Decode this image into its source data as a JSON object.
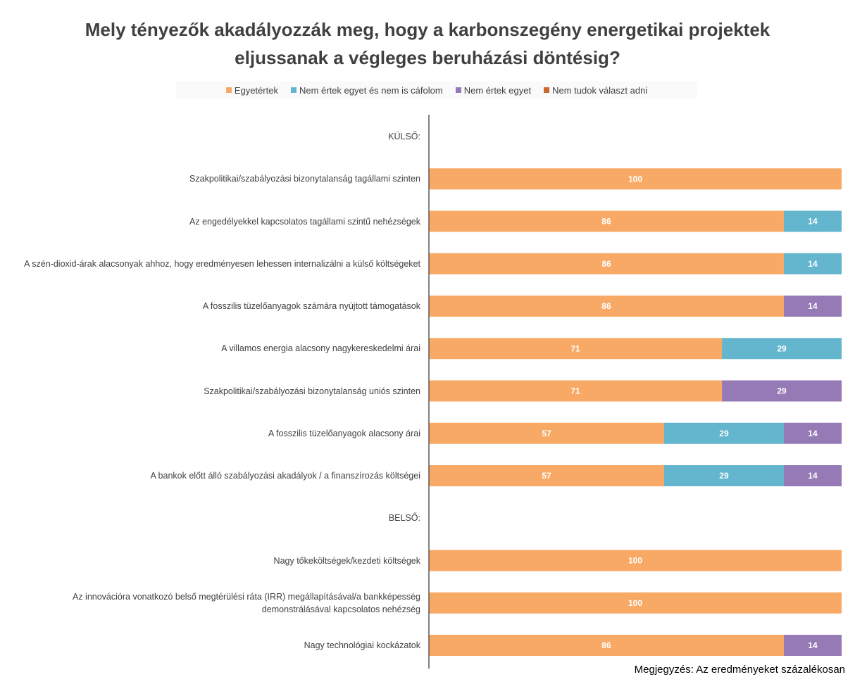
{
  "chart_data": {
    "type": "stacked-bar-horizontal",
    "title": "Mely tényezők akadályozzák meg, hogy a karbonszegény energetikai projektek eljussanak a végleges beruházási döntésig?",
    "categories": [
      "KÜLSŐ:",
      "Szakpolitikai/szabályozási bizonytalanság tagállami szinten",
      "Az engedélyekkel kapcsolatos tagállami szintű nehézségek",
      "A szén-dioxid-árak alacsonyak ahhoz, hogy eredményesen lehessen internalizálni a külső költségeket",
      "A fosszilis tüzelőanyagok számára nyújtott támogatások",
      "A villamos energia alacsony nagykereskedelmi árai",
      "Szakpolitikai/szabályozási bizonytalanság uniós szinten",
      "A fosszilis tüzelőanyagok alacsony árai",
      "A bankok előtt álló szabályozási akadályok / a finanszírozás költségei",
      "BELSŐ:",
      "Nagy tőkeköltségek/kezdeti költségek",
      "Az innovációra vonatkozó belső megtérülési ráta (IRR) megállapításával/a bankképesség demonstrálásával kapcsolatos nehézség",
      "Nagy technológiai kockázatok"
    ],
    "series": [
      {
        "name": "Egyetértek",
        "color": "#f8a965",
        "values": [
          null,
          100,
          86,
          86,
          86,
          71,
          71,
          57,
          57,
          null,
          100,
          100,
          86
        ]
      },
      {
        "name": "Nem értek egyet és nem is cáfolom",
        "color": "#63b6cd",
        "values": [
          null,
          null,
          14,
          14,
          null,
          29,
          null,
          29,
          29,
          null,
          null,
          null,
          null
        ]
      },
      {
        "name": "Nem értek egyet",
        "color": "#957ab6",
        "values": [
          null,
          null,
          null,
          null,
          14,
          null,
          29,
          14,
          14,
          null,
          null,
          null,
          14
        ]
      },
      {
        "name": "Nem tudok választ adni",
        "color": "#c9682d",
        "values": [
          null,
          null,
          null,
          null,
          null,
          null,
          null,
          null,
          null,
          null,
          null,
          null,
          null
        ]
      }
    ],
    "xlim": [
      0,
      100
    ],
    "note": "Megjegyzés: Az eredményeket százalékosan"
  }
}
